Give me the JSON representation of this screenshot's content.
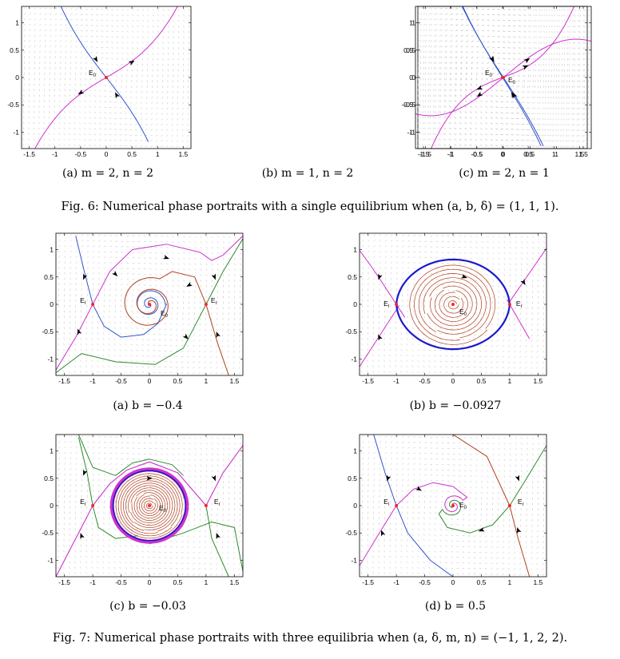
{
  "figures": [
    {
      "caption": "Fig. 6: Numerical phase portraits with a single equilibrium when (a, b, δ) = (1, 1, 1).",
      "panels": [
        {
          "caption": "(a) m = 2, n = 2",
          "equilibria": [
            "E0"
          ]
        },
        {
          "caption": "(b) m = 1, n = 2",
          "equilibria": [
            "E0"
          ]
        },
        {
          "caption": "(c) m = 2, n = 1",
          "equilibria": [
            "E0"
          ]
        }
      ]
    },
    {
      "caption": "Fig. 7: Numerical phase portraits with three equilibria when (a, δ, m, n) = (−1, 1, 2, 2).",
      "panels": [
        {
          "caption": "(a) b = −0.4",
          "equilibria": [
            "El",
            "E0",
            "Er"
          ]
        },
        {
          "caption": "(b) b = −0.0927",
          "equilibria": [
            "El",
            "E0",
            "Er"
          ]
        },
        {
          "caption": "(c) b = −0.03",
          "equilibria": [
            "El",
            "E0",
            "Er"
          ]
        },
        {
          "caption": "(d) b = 0.5",
          "equilibria": [
            "El",
            "E0",
            "Er"
          ]
        }
      ]
    }
  ],
  "axes": {
    "xticks": [
      "-1.5",
      "-1",
      "-0.5",
      "0",
      "0.5",
      "1",
      "1.5"
    ],
    "yticks": [
      "1",
      "0.5",
      "0",
      "-0.5",
      "-1"
    ],
    "xlim": [
      -1.65,
      1.65
    ],
    "ylim": [
      -1.3,
      1.3
    ]
  },
  "colors": {
    "stable_manifold": "#3355cc",
    "unstable_manifold": "#cc33cc",
    "orbit_red": "#b04020",
    "orbit_green": "#2e8a2e",
    "limit_cycle": "#1a1acc",
    "equilibrium": "#ff2222"
  }
}
